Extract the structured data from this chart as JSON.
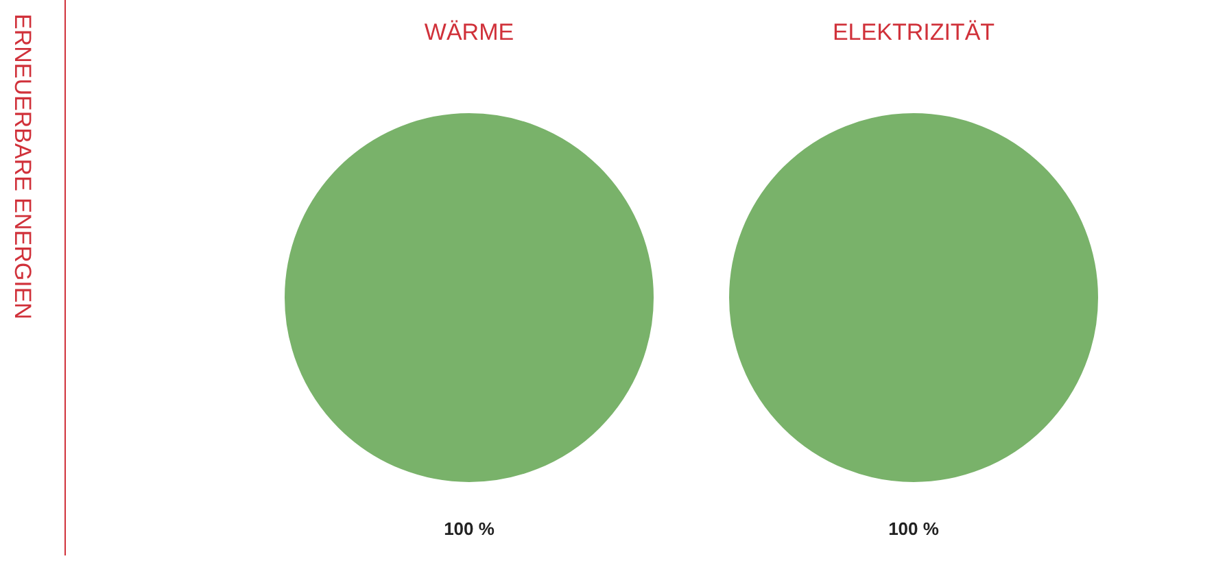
{
  "chart_data": [
    {
      "type": "pie",
      "title": "WÄRME",
      "ylabel": "ERNEUERBARE ENERGIEN",
      "categories": [
        null
      ],
      "values": [
        100
      ],
      "colors": [
        "#79b26a"
      ],
      "value_labels": [
        "100 %"
      ]
    },
    {
      "type": "pie",
      "title": "ELEKTRIZITÄT",
      "categories": [
        null
      ],
      "values": [
        100
      ],
      "colors": [
        "#79b26a"
      ],
      "value_labels": [
        "100 %"
      ]
    }
  ]
}
